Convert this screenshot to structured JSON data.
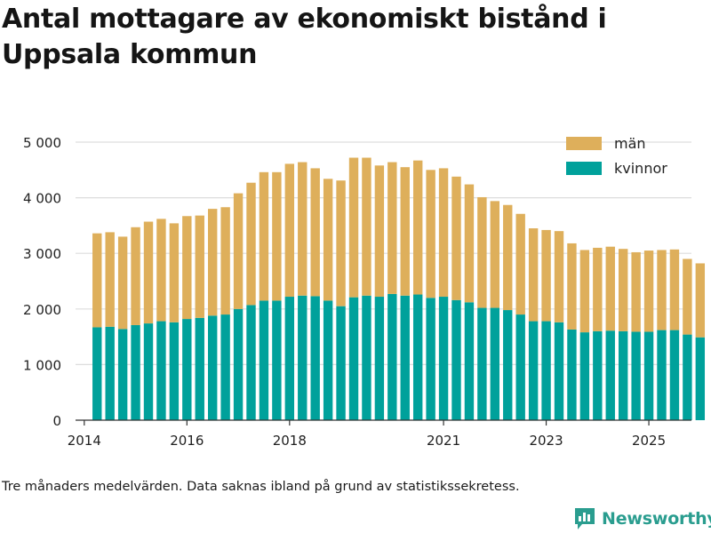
{
  "title": "Antal mottagare av ekonomiskt bistånd i Uppsala kommun",
  "footnote": "Tre månaders medelvärden. Data saknas ibland på grund av statistikssekretess.",
  "brand": {
    "name": "Newsworthy",
    "icon": "bar-chart-icon",
    "color": "#2a9d8f"
  },
  "colors": {
    "man": "#deaf5b",
    "kvinnor": "#00a19b",
    "grid": "#dddddd",
    "axis": "#333333"
  },
  "chart_data": {
    "type": "bar",
    "stacked": true,
    "title": "Antal mottagare av ekonomiskt bistånd i Uppsala kommun",
    "xlabel": "",
    "ylabel": "",
    "ylim": [
      0,
      5000
    ],
    "xlim": [
      2013.83,
      2025.83
    ],
    "y_ticks": [
      0,
      1000,
      2000,
      3000,
      4000,
      5000
    ],
    "y_tick_labels": [
      "0",
      "1 000",
      "2 000",
      "3 000",
      "4 000",
      "5 000"
    ],
    "x_ticks": [
      2014,
      2016,
      2018,
      2021,
      2023,
      2025
    ],
    "x_tick_labels": [
      "2014",
      "2016",
      "2018",
      "2021",
      "2023",
      "2025"
    ],
    "legend": {
      "position": "top-right",
      "items": [
        {
          "name": "män",
          "key": "man"
        },
        {
          "name": "kvinnor",
          "key": "kvinnor"
        }
      ]
    },
    "x": [
      2014.25,
      2014.5,
      2014.75,
      2015.0,
      2015.25,
      2015.5,
      2015.75,
      2016.0,
      2016.25,
      2016.5,
      2016.75,
      2017.0,
      2017.25,
      2017.5,
      2017.75,
      2018.0,
      2018.25,
      2018.5,
      2018.75,
      2019.0,
      2019.25,
      2019.5,
      2019.75,
      2020.0,
      2020.25,
      2020.5,
      2020.75,
      2021.0,
      2021.25,
      2021.5,
      2021.75,
      2022.0,
      2022.25,
      2022.5,
      2022.75,
      2023.0,
      2023.25,
      2023.5,
      2023.75,
      2024.0,
      2024.25,
      2024.5,
      2024.75,
      2025.0,
      2025.25,
      2025.5,
      2025.75,
      2026.0
    ],
    "series": [
      {
        "name": "kvinnor",
        "key": "kvinnor",
        "values": [
          1670,
          1680,
          1640,
          1710,
          1740,
          1780,
          1760,
          1820,
          1840,
          1880,
          1900,
          2000,
          2070,
          2150,
          2150,
          2220,
          2240,
          2230,
          2150,
          2050,
          2210,
          2240,
          2220,
          2270,
          2240,
          2260,
          2200,
          2220,
          2160,
          2120,
          2020,
          2020,
          1980,
          1900,
          1780,
          1780,
          1760,
          1630,
          1580,
          1600,
          1610,
          1600,
          1590,
          1590,
          1620,
          1620,
          1540,
          1490
        ]
      },
      {
        "name": "män",
        "key": "man",
        "values": [
          1690,
          1700,
          1660,
          1760,
          1830,
          1840,
          1780,
          1850,
          1840,
          1920,
          1930,
          2080,
          2200,
          2310,
          2310,
          2390,
          2400,
          2300,
          2190,
          2260,
          2510,
          2480,
          2360,
          2370,
          2310,
          2410,
          2300,
          2310,
          2220,
          2120,
          1990,
          1920,
          1890,
          1810,
          1670,
          1640,
          1640,
          1550,
          1480,
          1500,
          1510,
          1480,
          1430,
          1460,
          1440,
          1450,
          1360,
          1330
        ]
      }
    ]
  }
}
